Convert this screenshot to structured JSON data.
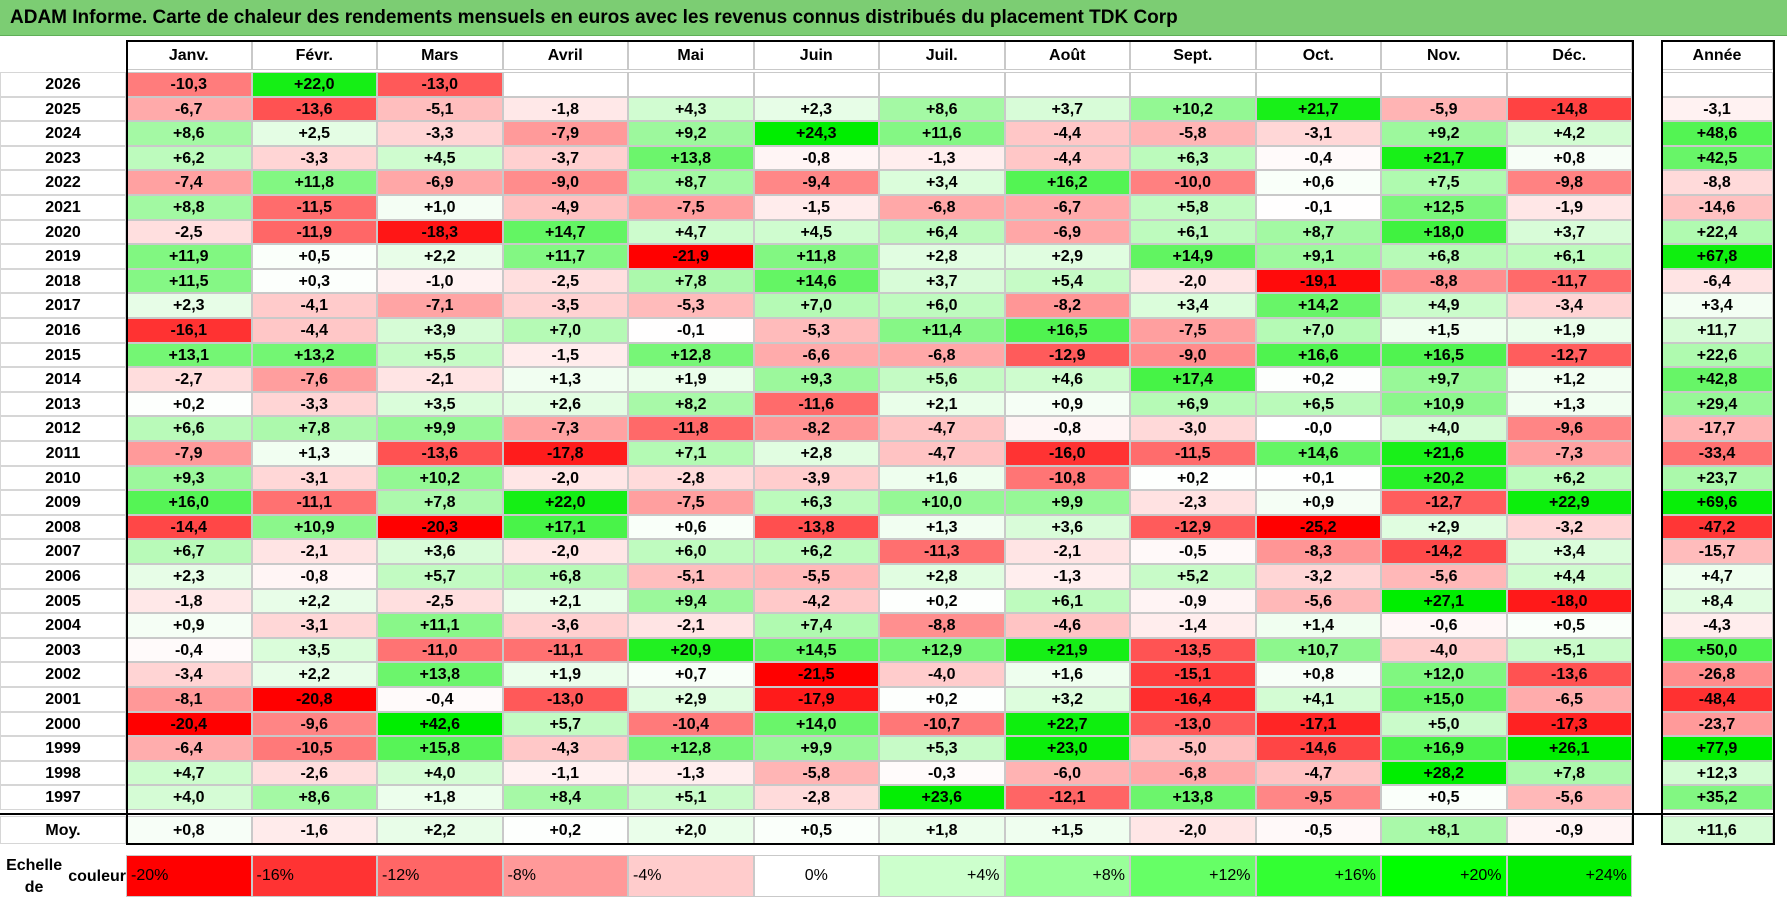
{
  "title": "ADAM Informe. Carte de chaleur des rendements mensuels en euros avec les revenus connus distribués du placement TDK Corp",
  "chart_data": {
    "type": "heatmap",
    "title": "ADAM Informe. Carte de chaleur des rendements mensuels en euros avec les revenus connus distribués du placement TDK Corp",
    "months": [
      "Janv.",
      "Févr.",
      "Mars",
      "Avril",
      "Mai",
      "Juin",
      "Juil.",
      "Août",
      "Sept.",
      "Oct.",
      "Nov.",
      "Déc."
    ],
    "year_header": "Année",
    "rows": [
      {
        "year": "2026",
        "values": [
          "-10,3",
          "+22,0",
          "-13,0",
          "",
          "",
          "",
          "",
          "",
          "",
          "",
          "",
          ""
        ],
        "annual": ""
      },
      {
        "year": "2025",
        "values": [
          "-6,7",
          "-13,6",
          "-5,1",
          "-1,8",
          "+4,3",
          "+2,3",
          "+8,6",
          "+3,7",
          "+10,2",
          "+21,7",
          "-5,9",
          "-14,8"
        ],
        "annual": "-3,1"
      },
      {
        "year": "2024",
        "values": [
          "+8,6",
          "+2,5",
          "-3,3",
          "-7,9",
          "+9,2",
          "+24,3",
          "+11,6",
          "-4,4",
          "-5,8",
          "-3,1",
          "+9,2",
          "+4,2"
        ],
        "annual": "+48,6"
      },
      {
        "year": "2023",
        "values": [
          "+6,2",
          "-3,3",
          "+4,5",
          "-3,7",
          "+13,8",
          "-0,8",
          "-1,3",
          "-4,4",
          "+6,3",
          "-0,4",
          "+21,7",
          "+0,8"
        ],
        "annual": "+42,5"
      },
      {
        "year": "2022",
        "values": [
          "-7,4",
          "+11,8",
          "-6,9",
          "-9,0",
          "+8,7",
          "-9,4",
          "+3,4",
          "+16,2",
          "-10,0",
          "+0,6",
          "+7,5",
          "-9,8"
        ],
        "annual": "-8,8"
      },
      {
        "year": "2021",
        "values": [
          "+8,8",
          "-11,5",
          "+1,0",
          "-4,9",
          "-7,5",
          "-1,5",
          "-6,8",
          "-6,7",
          "+5,8",
          "-0,1",
          "+12,5",
          "-1,9"
        ],
        "annual": "-14,6"
      },
      {
        "year": "2020",
        "values": [
          "-2,5",
          "-11,9",
          "-18,3",
          "+14,7",
          "+4,7",
          "+4,5",
          "+6,4",
          "-6,9",
          "+6,1",
          "+8,7",
          "+18,0",
          "+3,7"
        ],
        "annual": "+22,4"
      },
      {
        "year": "2019",
        "values": [
          "+11,9",
          "+0,5",
          "+2,2",
          "+11,7",
          "-21,9",
          "+11,8",
          "+2,8",
          "+2,9",
          "+14,9",
          "+9,1",
          "+6,8",
          "+6,1"
        ],
        "annual": "+67,8"
      },
      {
        "year": "2018",
        "values": [
          "+11,5",
          "+0,3",
          "-1,0",
          "-2,5",
          "+7,8",
          "+14,6",
          "+3,7",
          "+5,4",
          "-2,0",
          "-19,1",
          "-8,8",
          "-11,7"
        ],
        "annual": "-6,4"
      },
      {
        "year": "2017",
        "values": [
          "+2,3",
          "-4,1",
          "-7,1",
          "-3,5",
          "-5,3",
          "+7,0",
          "+6,0",
          "-8,2",
          "+3,4",
          "+14,2",
          "+4,9",
          "-3,4"
        ],
        "annual": "+3,4"
      },
      {
        "year": "2016",
        "values": [
          "-16,1",
          "-4,4",
          "+3,9",
          "+7,0",
          "-0,1",
          "-5,3",
          "+11,4",
          "+16,5",
          "-7,5",
          "+7,0",
          "+1,5",
          "+1,9"
        ],
        "annual": "+11,7"
      },
      {
        "year": "2015",
        "values": [
          "+13,1",
          "+13,2",
          "+5,5",
          "-1,5",
          "+12,8",
          "-6,6",
          "-6,8",
          "-12,9",
          "-9,0",
          "+16,6",
          "+16,5",
          "-12,7"
        ],
        "annual": "+22,6"
      },
      {
        "year": "2014",
        "values": [
          "-2,7",
          "-7,6",
          "-2,1",
          "+1,3",
          "+1,9",
          "+9,3",
          "+5,6",
          "+4,6",
          "+17,4",
          "+0,2",
          "+9,7",
          "+1,2"
        ],
        "annual": "+42,8"
      },
      {
        "year": "2013",
        "values": [
          "+0,2",
          "-3,3",
          "+3,5",
          "+2,6",
          "+8,2",
          "-11,6",
          "+2,1",
          "+0,9",
          "+6,9",
          "+6,5",
          "+10,9",
          "+1,3"
        ],
        "annual": "+29,4"
      },
      {
        "year": "2012",
        "values": [
          "+6,6",
          "+7,8",
          "+9,9",
          "-7,3",
          "-11,8",
          "-8,2",
          "-4,7",
          "-0,8",
          "-3,0",
          "-0,0",
          "+4,0",
          "-9,6"
        ],
        "annual": "-17,7"
      },
      {
        "year": "2011",
        "values": [
          "-7,9",
          "+1,3",
          "-13,6",
          "-17,8",
          "+7,1",
          "+2,8",
          "-4,7",
          "-16,0",
          "-11,5",
          "+14,6",
          "+21,6",
          "-7,3"
        ],
        "annual": "-33,4"
      },
      {
        "year": "2010",
        "values": [
          "+9,3",
          "-3,1",
          "+10,2",
          "-2,0",
          "-2,8",
          "-3,9",
          "+1,6",
          "-10,8",
          "+0,2",
          "+0,1",
          "+20,2",
          "+6,2"
        ],
        "annual": "+23,7"
      },
      {
        "year": "2009",
        "values": [
          "+16,0",
          "-11,1",
          "+7,8",
          "+22,0",
          "-7,5",
          "+6,3",
          "+10,0",
          "+9,9",
          "-2,3",
          "+0,9",
          "-12,7",
          "+22,9"
        ],
        "annual": "+69,6"
      },
      {
        "year": "2008",
        "values": [
          "-14,4",
          "+10,9",
          "-20,3",
          "+17,1",
          "+0,6",
          "-13,8",
          "+1,3",
          "+3,6",
          "-12,9",
          "-25,2",
          "+2,9",
          "-3,2"
        ],
        "annual": "-47,2"
      },
      {
        "year": "2007",
        "values": [
          "+6,7",
          "-2,1",
          "+3,6",
          "-2,0",
          "+6,0",
          "+6,2",
          "-11,3",
          "-2,1",
          "-0,5",
          "-8,3",
          "-14,2",
          "+3,4"
        ],
        "annual": "-15,7"
      },
      {
        "year": "2006",
        "values": [
          "+2,3",
          "-0,8",
          "+5,7",
          "+6,8",
          "-5,1",
          "-5,5",
          "+2,8",
          "-1,3",
          "+5,2",
          "-3,2",
          "-5,6",
          "+4,4"
        ],
        "annual": "+4,7"
      },
      {
        "year": "2005",
        "values": [
          "-1,8",
          "+2,2",
          "-2,5",
          "+2,1",
          "+9,4",
          "-4,2",
          "+0,2",
          "+6,1",
          "-0,9",
          "-5,6",
          "+27,1",
          "-18,0"
        ],
        "annual": "+8,4"
      },
      {
        "year": "2004",
        "values": [
          "+0,9",
          "-3,1",
          "+11,1",
          "-3,6",
          "-2,1",
          "+7,4",
          "-8,8",
          "-4,6",
          "-1,4",
          "+1,4",
          "-0,6",
          "+0,5"
        ],
        "annual": "-4,3"
      },
      {
        "year": "2003",
        "values": [
          "-0,4",
          "+3,5",
          "-11,0",
          "-11,1",
          "+20,9",
          "+14,5",
          "+12,9",
          "+21,9",
          "-13,5",
          "+10,7",
          "-4,0",
          "+5,1"
        ],
        "annual": "+50,0"
      },
      {
        "year": "2002",
        "values": [
          "-3,4",
          "+2,2",
          "+13,8",
          "+1,9",
          "+0,7",
          "-21,5",
          "-4,0",
          "+1,6",
          "-15,1",
          "+0,8",
          "+12,0",
          "-13,6"
        ],
        "annual": "-26,8"
      },
      {
        "year": "2001",
        "values": [
          "-8,1",
          "-20,8",
          "-0,4",
          "-13,0",
          "+2,9",
          "-17,9",
          "+0,2",
          "+3,2",
          "-16,4",
          "+4,1",
          "+15,0",
          "-6,5"
        ],
        "annual": "-48,4"
      },
      {
        "year": "2000",
        "values": [
          "-20,4",
          "-9,6",
          "+42,6",
          "+5,7",
          "-10,4",
          "+14,0",
          "-10,7",
          "+22,7",
          "-13,0",
          "-17,1",
          "+5,0",
          "-17,3"
        ],
        "annual": "-23,7"
      },
      {
        "year": "1999",
        "values": [
          "-6,4",
          "-10,5",
          "+15,8",
          "-4,3",
          "+12,8",
          "+9,9",
          "+5,3",
          "+23,0",
          "-5,0",
          "-14,6",
          "+16,9",
          "+26,1"
        ],
        "annual": "+77,9"
      },
      {
        "year": "1998",
        "values": [
          "+4,7",
          "-2,6",
          "+4,0",
          "-1,1",
          "-1,3",
          "-5,8",
          "-0,3",
          "-6,0",
          "-6,8",
          "-4,7",
          "+28,2",
          "+7,8"
        ],
        "annual": "+12,3"
      },
      {
        "year": "1997",
        "values": [
          "+4,0",
          "+8,6",
          "+1,8",
          "+8,4",
          "+5,1",
          "-2,8",
          "+23,6",
          "-12,1",
          "+13,8",
          "-9,5",
          "+0,5",
          "-5,6"
        ],
        "annual": "+35,2"
      }
    ],
    "average": {
      "label": "Moy.",
      "values": [
        "+0,8",
        "-1,6",
        "+2,2",
        "+0,2",
        "+2,0",
        "+0,5",
        "+1,8",
        "+1,5",
        "-2,0",
        "-0,5",
        "+8,1",
        "-0,9"
      ],
      "annual": "+11,6"
    },
    "legend": {
      "label_line1": "Echelle de",
      "label_line2": "couleur",
      "stops": [
        {
          "label": "-20%",
          "value": -20,
          "color": "#ff0000"
        },
        {
          "label": "-16%",
          "value": -16,
          "color": "#ff3333"
        },
        {
          "label": "-12%",
          "value": -12,
          "color": "#ff6666"
        },
        {
          "label": "-8%",
          "value": -8,
          "color": "#ff9999"
        },
        {
          "label": "-4%",
          "value": -4,
          "color": "#ffcccc"
        },
        {
          "label": "0%",
          "value": 0,
          "color": "#ffffff"
        },
        {
          "label": "+4%",
          "value": 4,
          "color": "#ccffcc"
        },
        {
          "label": "+8%",
          "value": 8,
          "color": "#99ff99"
        },
        {
          "label": "+12%",
          "value": 12,
          "color": "#66ff66"
        },
        {
          "label": "+16%",
          "value": 16,
          "color": "#33ff33"
        },
        {
          "label": "+20%",
          "value": 20,
          "color": "#00ff00"
        },
        {
          "label": "+24%",
          "value": 24,
          "color": "#00ee00"
        }
      ]
    },
    "color_scale": {
      "min": -20,
      "max": 24,
      "negative_color": "#ff0000",
      "positive_color": "#00ee00",
      "neutral_color": "#ffffff"
    }
  }
}
